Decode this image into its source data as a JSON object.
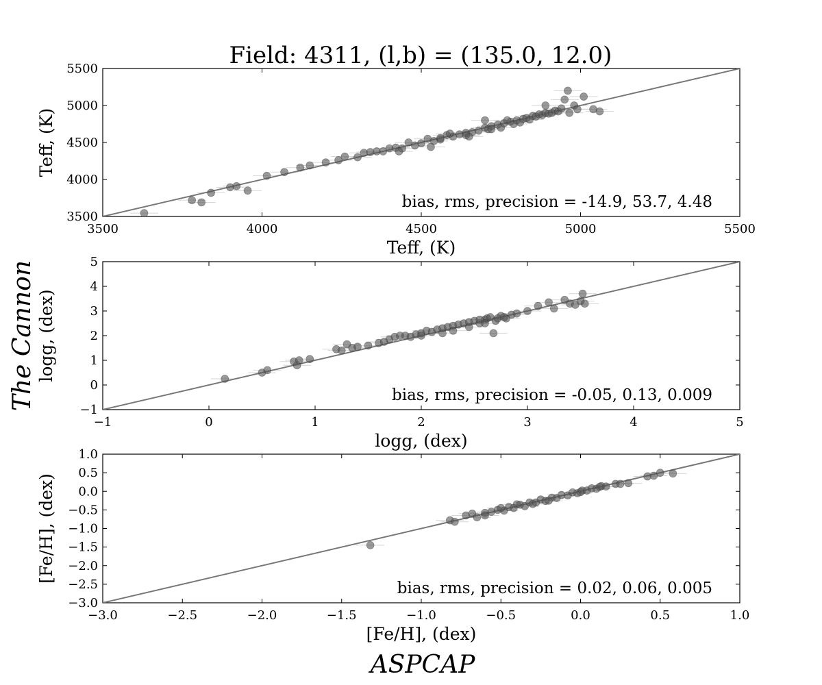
{
  "figure": {
    "title": "Field: 4311, (l,b) = (135.0, 12.0)",
    "supylabel": "The Cannon",
    "supxlabel": "ASPCAP"
  },
  "colors": {
    "points": "#555555",
    "errorbars": "#cccccc",
    "line": "#777777",
    "axes": "#000000"
  },
  "chart_data": [
    {
      "type": "scatter",
      "xlabel": "Teff, (K)",
      "ylabel": "Teff, (K)",
      "xlim": [
        3500,
        5500
      ],
      "ylim": [
        3500,
        5500
      ],
      "xticks": [
        "3500",
        "4000",
        "4500",
        "5000",
        "5500"
      ],
      "yticks": [
        "3500",
        "4000",
        "4500",
        "5000",
        "5500"
      ],
      "stats_text": "bias, rms, precision = -14.9, 53.7, 4.48",
      "reference_line": "y = x",
      "points": [
        [
          3630,
          3545
        ],
        [
          3780,
          3720
        ],
        [
          3810,
          3690
        ],
        [
          3840,
          3820
        ],
        [
          3900,
          3895
        ],
        [
          3920,
          3910
        ],
        [
          3955,
          3850
        ],
        [
          4015,
          4050
        ],
        [
          4070,
          4100
        ],
        [
          4120,
          4160
        ],
        [
          4150,
          4190
        ],
        [
          4200,
          4230
        ],
        [
          4240,
          4260
        ],
        [
          4260,
          4310
        ],
        [
          4300,
          4300
        ],
        [
          4320,
          4360
        ],
        [
          4340,
          4370
        ],
        [
          4360,
          4380
        ],
        [
          4380,
          4380
        ],
        [
          4400,
          4420
        ],
        [
          4420,
          4430
        ],
        [
          4440,
          4420
        ],
        [
          4460,
          4500
        ],
        [
          4480,
          4460
        ],
        [
          4500,
          4490
        ],
        [
          4520,
          4550
        ],
        [
          4540,
          4520
        ],
        [
          4560,
          4540
        ],
        [
          4580,
          4600
        ],
        [
          4600,
          4580
        ],
        [
          4620,
          4610
        ],
        [
          4640,
          4630
        ],
        [
          4660,
          4640
        ],
        [
          4680,
          4660
        ],
        [
          4700,
          4700
        ],
        [
          4710,
          4680
        ],
        [
          4720,
          4720
        ],
        [
          4740,
          4740
        ],
        [
          4750,
          4700
        ],
        [
          4760,
          4760
        ],
        [
          4780,
          4780
        ],
        [
          4790,
          4750
        ],
        [
          4800,
          4800
        ],
        [
          4810,
          4770
        ],
        [
          4820,
          4820
        ],
        [
          4830,
          4830
        ],
        [
          4840,
          4810
        ],
        [
          4850,
          4860
        ],
        [
          4860,
          4850
        ],
        [
          4870,
          4880
        ],
        [
          4880,
          4870
        ],
        [
          4890,
          4900
        ],
        [
          4900,
          4890
        ],
        [
          4910,
          4900
        ],
        [
          4920,
          4930
        ],
        [
          4930,
          4920
        ],
        [
          4940,
          4960
        ],
        [
          4950,
          5080
        ],
        [
          4960,
          5200
        ],
        [
          4965,
          4900
        ],
        [
          4980,
          5000
        ],
        [
          4990,
          4950
        ],
        [
          5010,
          5120
        ],
        [
          5040,
          4950
        ],
        [
          5060,
          4920
        ],
        [
          4890,
          5000
        ],
        [
          4700,
          4800
        ],
        [
          4650,
          4580
        ],
        [
          4530,
          4440
        ],
        [
          4430,
          4380
        ],
        [
          4560,
          4560
        ],
        [
          4640,
          4600
        ],
        [
          4590,
          4620
        ],
        [
          4720,
          4680
        ],
        [
          4770,
          4800
        ]
      ]
    },
    {
      "type": "scatter",
      "xlabel": "logg, (dex)",
      "ylabel": "logg, (dex)",
      "xlim": [
        -1,
        5
      ],
      "ylim": [
        -1,
        5
      ],
      "xticks": [
        "−1",
        "0",
        "1",
        "2",
        "3",
        "4",
        "5"
      ],
      "yticks": [
        "−1",
        "0",
        "1",
        "2",
        "3",
        "4",
        "5"
      ],
      "stats_text": "bias, rms, precision = -0.05, 0.13, 0.009",
      "reference_line": "y = x",
      "points": [
        [
          0.15,
          0.25
        ],
        [
          0.5,
          0.5
        ],
        [
          0.55,
          0.6
        ],
        [
          0.8,
          0.95
        ],
        [
          0.83,
          0.8
        ],
        [
          0.85,
          1.0
        ],
        [
          0.95,
          1.05
        ],
        [
          1.2,
          1.45
        ],
        [
          1.25,
          1.4
        ],
        [
          1.3,
          1.65
        ],
        [
          1.35,
          1.5
        ],
        [
          1.4,
          1.55
        ],
        [
          1.5,
          1.6
        ],
        [
          1.6,
          1.7
        ],
        [
          1.7,
          1.85
        ],
        [
          1.75,
          1.95
        ],
        [
          1.8,
          2.0
        ],
        [
          1.85,
          2.0
        ],
        [
          1.9,
          1.95
        ],
        [
          1.95,
          2.05
        ],
        [
          2.0,
          2.1
        ],
        [
          2.05,
          2.2
        ],
        [
          2.1,
          2.15
        ],
        [
          2.15,
          2.25
        ],
        [
          2.2,
          2.3
        ],
        [
          2.25,
          2.35
        ],
        [
          2.3,
          2.4
        ],
        [
          2.35,
          2.45
        ],
        [
          2.4,
          2.5
        ],
        [
          2.45,
          2.55
        ],
        [
          2.5,
          2.6
        ],
        [
          2.55,
          2.5
        ],
        [
          2.6,
          2.65
        ],
        [
          2.62,
          2.7
        ],
        [
          2.65,
          2.75
        ],
        [
          2.68,
          2.1
        ],
        [
          2.7,
          2.6
        ],
        [
          2.75,
          2.8
        ],
        [
          2.8,
          2.7
        ],
        [
          2.85,
          2.85
        ],
        [
          2.9,
          2.9
        ],
        [
          3.0,
          3.0
        ],
        [
          3.1,
          3.2
        ],
        [
          3.2,
          3.35
        ],
        [
          3.25,
          3.1
        ],
        [
          3.35,
          3.45
        ],
        [
          3.4,
          3.3
        ],
        [
          3.45,
          3.25
        ],
        [
          3.5,
          3.4
        ],
        [
          3.52,
          3.7
        ],
        [
          3.54,
          3.3
        ],
        [
          2.3,
          2.2
        ],
        [
          2.45,
          2.35
        ],
        [
          2.55,
          2.65
        ],
        [
          2.6,
          2.5
        ],
        [
          2.72,
          2.7
        ],
        [
          2.78,
          2.75
        ],
        [
          2.0,
          2.0
        ],
        [
          2.2,
          2.1
        ],
        [
          1.65,
          1.75
        ]
      ]
    },
    {
      "type": "scatter",
      "xlabel": "[Fe/H], (dex)",
      "ylabel": "[Fe/H], (dex)",
      "xlim": [
        -3.0,
        1.0
      ],
      "ylim": [
        -3.0,
        1.0
      ],
      "xticks": [
        "−3.0",
        "−2.5",
        "−2.0",
        "−1.5",
        "−1.0",
        "−0.5",
        "0.0",
        "0.5",
        "1.0"
      ],
      "yticks": [
        "−3.0",
        "−2.5",
        "−2.0",
        "−1.5",
        "−1.0",
        "−0.5",
        "0.0",
        "0.5",
        "1.0"
      ],
      "stats_text": "bias, rms, precision = 0.02, 0.06, 0.005",
      "reference_line": "y = x",
      "points": [
        [
          -1.32,
          -1.45
        ],
        [
          -0.82,
          -0.78
        ],
        [
          -0.79,
          -0.82
        ],
        [
          -0.72,
          -0.65
        ],
        [
          -0.68,
          -0.6
        ],
        [
          -0.65,
          -0.7
        ],
        [
          -0.6,
          -0.58
        ],
        [
          -0.56,
          -0.55
        ],
        [
          -0.52,
          -0.5
        ],
        [
          -0.48,
          -0.52
        ],
        [
          -0.45,
          -0.42
        ],
        [
          -0.42,
          -0.45
        ],
        [
          -0.38,
          -0.36
        ],
        [
          -0.35,
          -0.4
        ],
        [
          -0.32,
          -0.3
        ],
        [
          -0.28,
          -0.3
        ],
        [
          -0.25,
          -0.22
        ],
        [
          -0.22,
          -0.26
        ],
        [
          -0.18,
          -0.17
        ],
        [
          -0.15,
          -0.18
        ],
        [
          -0.12,
          -0.1
        ],
        [
          -0.08,
          -0.11
        ],
        [
          -0.05,
          -0.03
        ],
        [
          -0.02,
          -0.05
        ],
        [
          0.01,
          0.02
        ],
        [
          0.04,
          0.02
        ],
        [
          0.07,
          0.08
        ],
        [
          0.1,
          0.07
        ],
        [
          0.13,
          0.14
        ],
        [
          0.16,
          0.13
        ],
        [
          0.22,
          0.2
        ],
        [
          0.25,
          0.2
        ],
        [
          0.3,
          0.22
        ],
        [
          0.42,
          0.4
        ],
        [
          0.46,
          0.42
        ],
        [
          0.5,
          0.5
        ],
        [
          0.58,
          0.48
        ],
        [
          -0.6,
          -0.65
        ],
        [
          -0.4,
          -0.35
        ],
        [
          -0.2,
          -0.25
        ],
        [
          0.0,
          -0.02
        ],
        [
          0.12,
          0.12
        ],
        [
          -0.5,
          -0.45
        ],
        [
          -0.3,
          -0.34
        ]
      ]
    }
  ]
}
